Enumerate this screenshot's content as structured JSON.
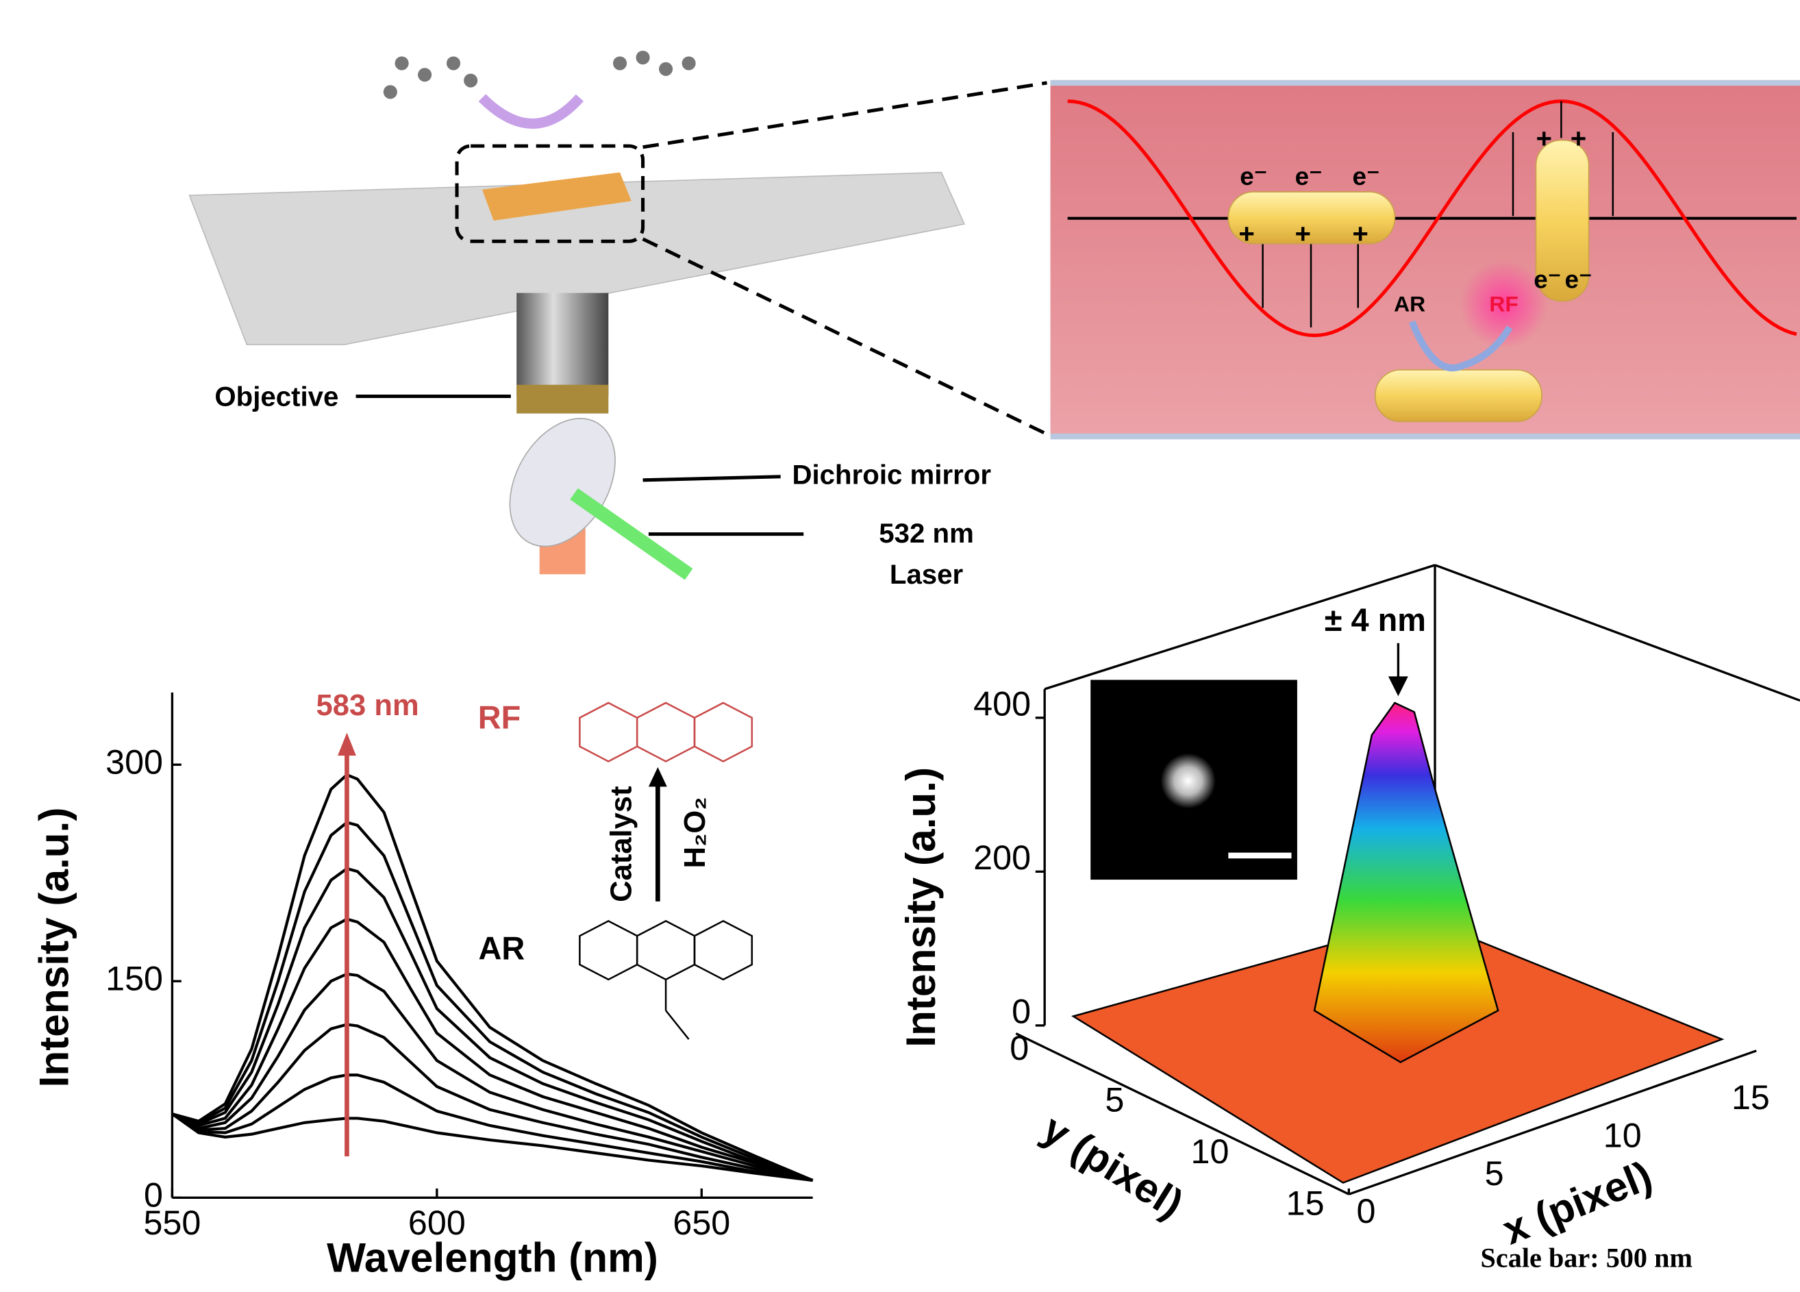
{
  "schematic": {
    "labels": {
      "objective": "Objective",
      "dichroic_mirror": "Dichroic mirror",
      "laser_wavelength": "532 nm",
      "laser": "Laser"
    },
    "zoom": {
      "electrons": [
        "e⁻",
        "e⁻",
        "e⁻",
        "e⁻",
        "e⁻"
      ],
      "charges": [
        "+",
        "+",
        "+",
        "+",
        "+"
      ],
      "reactant": "AR",
      "product": "RF"
    }
  },
  "chart_data": [
    {
      "type": "line",
      "xlabel": "Wavelength (nm)",
      "ylabel": "Intensity (a.u.)",
      "line_color": "#000000",
      "x": [
        550,
        555,
        560,
        565,
        570,
        575,
        580,
        583,
        585,
        590,
        595,
        600,
        610,
        620,
        630,
        640,
        650,
        660,
        671
      ],
      "series": [
        {
          "values": [
            58,
            45,
            42,
            44,
            48,
            52,
            54,
            55,
            55,
            53,
            49,
            45,
            40,
            36,
            31,
            26,
            22,
            17,
            12
          ]
        },
        {
          "values": [
            58,
            46,
            45,
            51,
            63,
            75,
            83,
            85,
            85,
            80,
            70,
            60,
            50,
            43,
            37,
            31,
            25,
            18,
            12
          ]
        },
        {
          "values": [
            58,
            47,
            48,
            60,
            80,
            102,
            117,
            120,
            119,
            111,
            94,
            77,
            61,
            52,
            44,
            37,
            28,
            20,
            12
          ]
        },
        {
          "values": [
            58,
            48,
            52,
            69,
            98,
            130,
            150,
            155,
            154,
            143,
            119,
            95,
            73,
            61,
            51,
            42,
            32,
            22,
            12
          ]
        },
        {
          "values": [
            58,
            50,
            55,
            78,
            117,
            159,
            187,
            193,
            191,
            177,
            145,
            114,
            85,
            70,
            59,
            48,
            35,
            24,
            12
          ]
        },
        {
          "values": [
            58,
            51,
            59,
            87,
            134,
            187,
            220,
            228,
            226,
            208,
            170,
            131,
            97,
            79,
            66,
            54,
            39,
            25,
            12
          ]
        },
        {
          "values": [
            58,
            52,
            62,
            95,
            150,
            212,
            251,
            260,
            258,
            237,
            192,
            147,
            108,
            87,
            72,
            59,
            42,
            27,
            12
          ]
        },
        {
          "values": [
            58,
            53,
            65,
            103,
            167,
            237,
            283,
            293,
            290,
            267,
            215,
            164,
            118,
            95,
            79,
            64,
            45,
            29,
            12
          ]
        }
      ],
      "xlim": [
        550,
        671
      ],
      "ylim": [
        0,
        350
      ],
      "xticks": [
        550,
        600,
        650
      ],
      "yticks": [
        0,
        150,
        300
      ],
      "annotation": {
        "x": 583,
        "label": "583 nm",
        "color": "#c94a4a"
      },
      "inset": {
        "product": "RF",
        "reactant": "AR",
        "catalyst": "Catalyst",
        "oxidant": "H₂O₂"
      }
    },
    {
      "type": "surface",
      "xlabel": "x (pixel)",
      "ylabel": "y (pixel)",
      "zlabel": "Intensity (a.u.)",
      "xticks": [
        0,
        5,
        10,
        15
      ],
      "yticks": [
        0,
        5,
        10,
        15
      ],
      "zticks": [
        0,
        200,
        400
      ],
      "zlim": [
        0,
        400
      ],
      "xlim": [
        0,
        15
      ],
      "ylim": [
        0,
        15
      ],
      "annotation": "± 4 nm",
      "caption": "Scale bar: 500 nm"
    }
  ]
}
